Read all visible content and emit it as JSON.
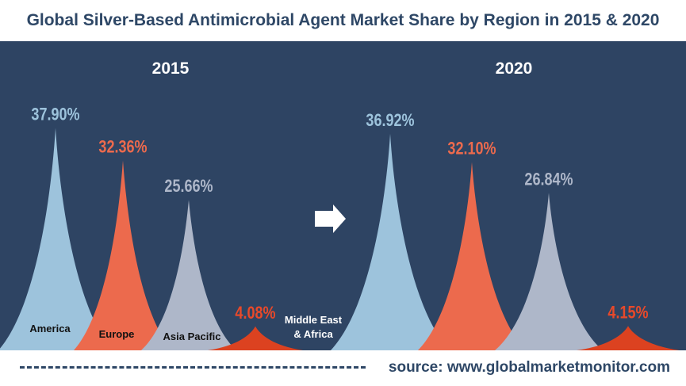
{
  "title": "Global Silver-Based Antimicrobial Agent Market Share by Region in 2015 & 2020",
  "source": "source: www.globalmarketmonitor.com",
  "chart_data": {
    "type": "pie",
    "title": "Global Silver-Based Antimicrobial Agent Market Share by Region in 2015 & 2020",
    "unit": "%",
    "categories": [
      "America",
      "Europe",
      "Asia Pacific",
      "Middle East & Africa"
    ],
    "colors": [
      "#9dc3dc",
      "#ec6a4d",
      "#aeb7c9",
      "#dc4220"
    ],
    "label_colors": [
      "#9dc3dc",
      "#ec6a4d",
      "#aeb7c9",
      "#e8492a"
    ],
    "series": [
      {
        "name": "2015",
        "values": [
          37.9,
          32.36,
          25.66,
          4.08
        ],
        "labels": [
          "37.90%",
          "32.36%",
          "25.66%",
          "4.08%"
        ]
      },
      {
        "name": "2020",
        "values": [
          36.92,
          32.1,
          26.84,
          4.15
        ],
        "labels": [
          "36.92%",
          "32.10%",
          "26.84%",
          "4.15%"
        ]
      }
    ]
  },
  "arrow_icon": "right-arrow-icon"
}
